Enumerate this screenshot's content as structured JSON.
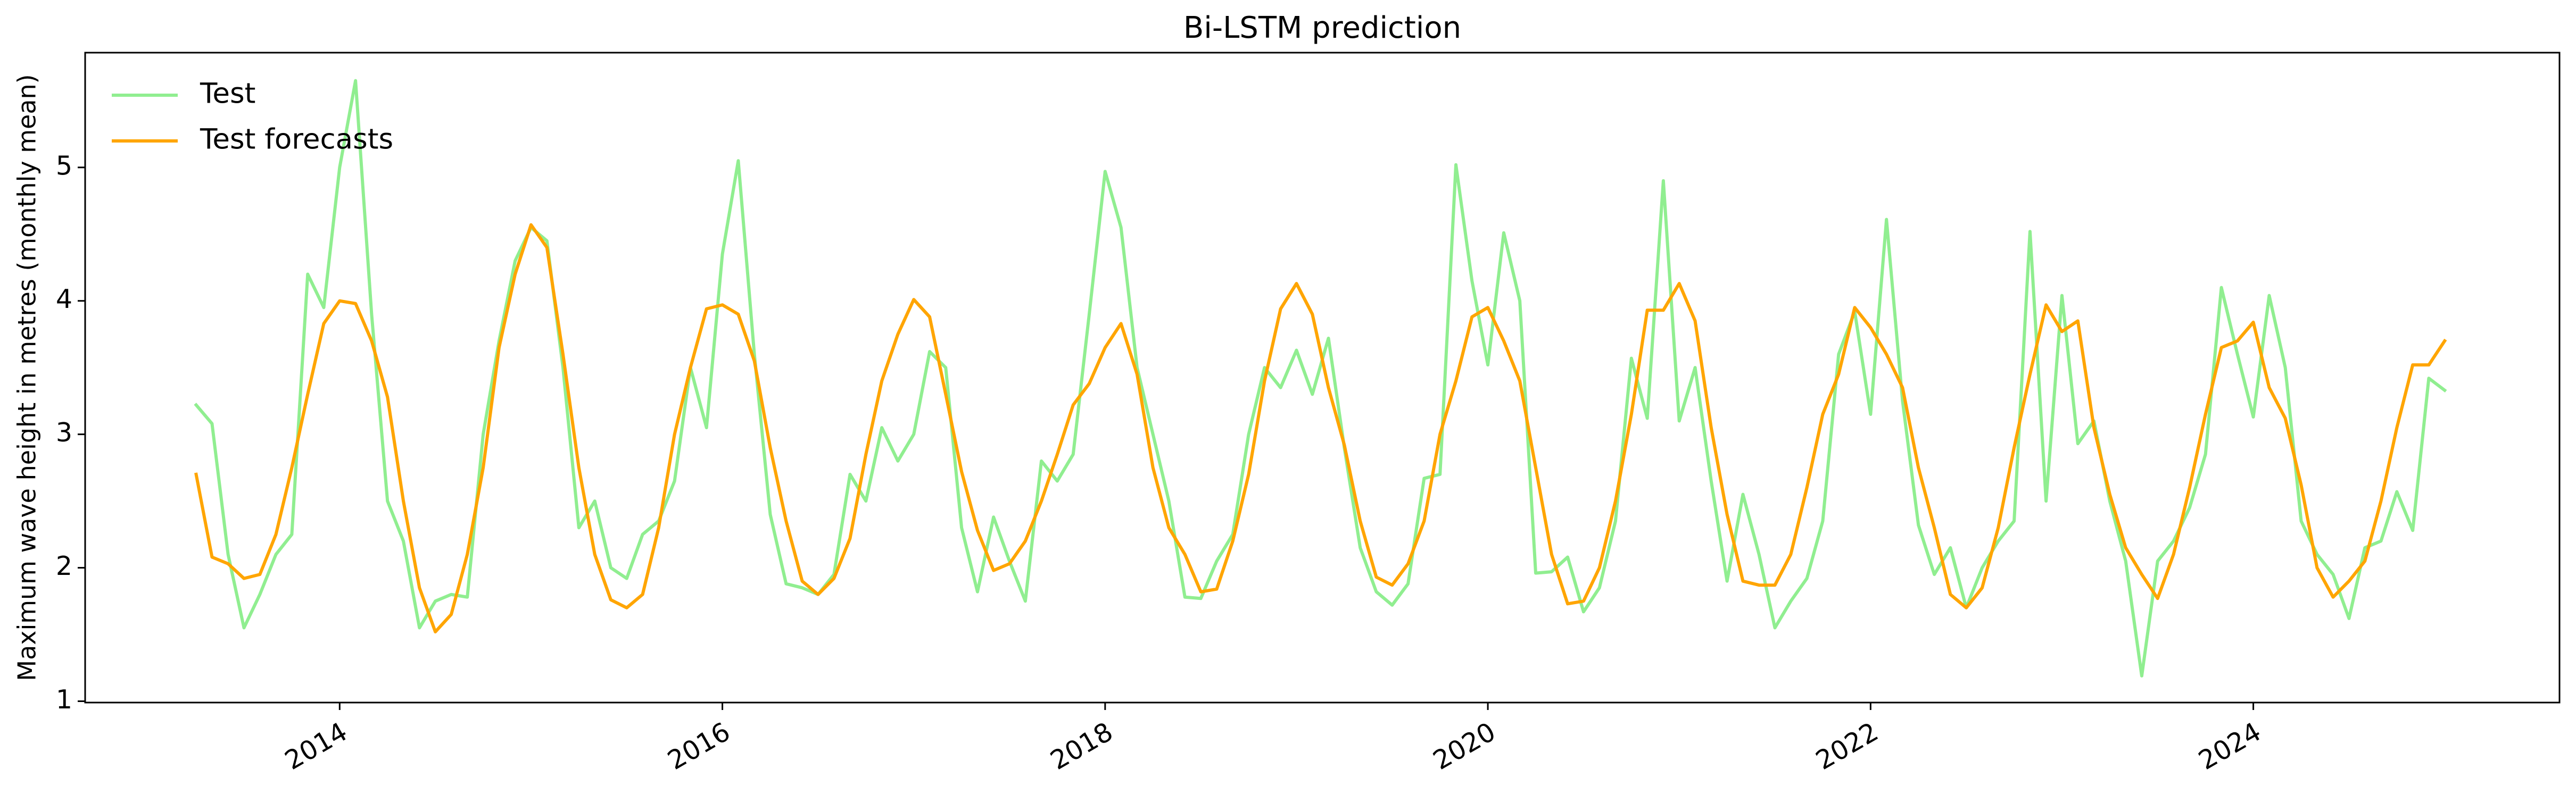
{
  "chart_data": {
    "type": "line",
    "title": "Bi-LSTM prediction",
    "ylabel": "Maximum wave height in metres (monthly mean)",
    "x": [
      2013.25,
      2013.333,
      2013.417,
      2013.5,
      2013.583,
      2013.667,
      2013.75,
      2013.833,
      2013.917,
      2014,
      2014.083,
      2014.167,
      2014.25,
      2014.333,
      2014.417,
      2014.5,
      2014.583,
      2014.667,
      2014.75,
      2014.833,
      2014.917,
      2015,
      2015.083,
      2015.167,
      2015.25,
      2015.333,
      2015.417,
      2015.5,
      2015.583,
      2015.667,
      2015.75,
      2015.833,
      2015.917,
      2016,
      2016.083,
      2016.167,
      2016.25,
      2016.333,
      2016.417,
      2016.5,
      2016.583,
      2016.667,
      2016.75,
      2016.833,
      2016.917,
      2017,
      2017.083,
      2017.167,
      2017.25,
      2017.333,
      2017.417,
      2017.5,
      2017.583,
      2017.667,
      2017.75,
      2017.833,
      2017.917,
      2018,
      2018.083,
      2018.167,
      2018.25,
      2018.333,
      2018.417,
      2018.5,
      2018.583,
      2018.667,
      2018.75,
      2018.833,
      2018.917,
      2019,
      2019.083,
      2019.167,
      2019.25,
      2019.333,
      2019.417,
      2019.5,
      2019.583,
      2019.667,
      2019.75,
      2019.833,
      2019.917,
      2020,
      2020.083,
      2020.167,
      2020.25,
      2020.333,
      2020.417,
      2020.5,
      2020.583,
      2020.667,
      2020.75,
      2020.833,
      2020.917,
      2021,
      2021.083,
      2021.167,
      2021.25,
      2021.333,
      2021.417,
      2021.5,
      2021.583,
      2021.667,
      2021.75,
      2021.833,
      2021.917,
      2022,
      2022.083,
      2022.167,
      2022.25,
      2022.333,
      2022.417,
      2022.5,
      2022.583,
      2022.667,
      2022.75,
      2022.833,
      2022.917,
      2023,
      2023.083,
      2023.167,
      2023.25,
      2023.333,
      2023.417,
      2023.5,
      2023.583,
      2023.667,
      2023.75,
      2023.833,
      2023.917,
      2024,
      2024.083,
      2024.167,
      2024.25,
      2024.333,
      2024.417,
      2024.5,
      2024.583,
      2024.667,
      2024.75,
      2024.833,
      2024.917,
      2025
    ],
    "series": [
      {
        "name": "Test",
        "color": "#90ee90",
        "values": [
          3.22,
          3.08,
          2.1,
          1.55,
          1.8,
          2.1,
          2.25,
          4.2,
          3.95,
          5.0,
          5.65,
          3.9,
          2.5,
          2.2,
          1.55,
          1.75,
          1.8,
          1.78,
          3.0,
          3.7,
          4.3,
          4.55,
          4.45,
          3.5,
          2.3,
          2.5,
          2.0,
          1.92,
          2.25,
          2.35,
          2.65,
          3.5,
          3.05,
          4.35,
          5.05,
          3.6,
          2.4,
          1.88,
          1.85,
          1.8,
          1.95,
          2.7,
          2.5,
          3.05,
          2.8,
          3.0,
          3.62,
          3.5,
          2.3,
          1.82,
          2.38,
          2.05,
          1.75,
          2.8,
          2.65,
          2.85,
          3.9,
          4.97,
          4.55,
          3.5,
          3.0,
          2.5,
          1.78,
          1.77,
          2.05,
          2.25,
          3.0,
          3.5,
          3.35,
          3.63,
          3.3,
          3.72,
          2.9,
          2.15,
          1.82,
          1.72,
          1.88,
          2.67,
          2.7,
          5.02,
          4.15,
          3.52,
          4.51,
          4.0,
          1.96,
          1.97,
          2.08,
          1.67,
          1.85,
          2.35,
          3.57,
          3.12,
          4.9,
          3.1,
          3.5,
          2.65,
          1.9,
          2.55,
          2.1,
          1.55,
          1.75,
          1.92,
          2.35,
          3.6,
          3.92,
          3.15,
          4.61,
          3.25,
          2.32,
          1.95,
          2.15,
          1.7,
          2.0,
          2.2,
          2.35,
          4.52,
          2.5,
          4.04,
          2.93,
          3.1,
          2.5,
          2.05,
          1.19,
          2.05,
          2.2,
          2.45,
          2.85,
          4.1,
          3.6,
          3.13,
          4.04,
          3.5,
          2.35,
          2.1,
          1.95,
          1.62,
          2.15,
          2.2,
          2.57,
          2.28,
          3.42,
          3.33
        ]
      },
      {
        "name": "Test forecasts",
        "color": "#ffa500",
        "values": [
          2.7,
          2.08,
          2.03,
          1.92,
          1.95,
          2.25,
          2.75,
          3.3,
          3.83,
          4.0,
          3.98,
          3.7,
          3.28,
          2.5,
          1.85,
          1.52,
          1.65,
          2.1,
          2.75,
          3.65,
          4.2,
          4.57,
          4.4,
          3.6,
          2.75,
          2.1,
          1.76,
          1.7,
          1.8,
          2.3,
          3.0,
          3.5,
          3.94,
          3.97,
          3.9,
          3.55,
          2.9,
          2.35,
          1.9,
          1.8,
          1.92,
          2.22,
          2.85,
          3.4,
          3.75,
          4.01,
          3.88,
          3.3,
          2.72,
          2.28,
          1.98,
          2.03,
          2.2,
          2.5,
          2.85,
          3.22,
          3.38,
          3.65,
          3.83,
          3.45,
          2.75,
          2.3,
          2.1,
          1.82,
          1.84,
          2.2,
          2.7,
          3.4,
          3.94,
          4.13,
          3.9,
          3.35,
          2.92,
          2.35,
          1.93,
          1.87,
          2.03,
          2.35,
          3.0,
          3.4,
          3.88,
          3.95,
          3.7,
          3.4,
          2.75,
          2.1,
          1.73,
          1.75,
          2.0,
          2.5,
          3.15,
          3.93,
          3.93,
          4.13,
          3.85,
          3.05,
          2.4,
          1.9,
          1.87,
          1.87,
          2.1,
          2.6,
          3.15,
          3.45,
          3.95,
          3.8,
          3.6,
          3.35,
          2.75,
          2.3,
          1.8,
          1.7,
          1.85,
          2.3,
          2.9,
          3.45,
          3.97,
          3.77,
          3.85,
          3.05,
          2.55,
          2.15,
          1.95,
          1.77,
          2.1,
          2.6,
          3.15,
          3.65,
          3.7,
          3.84,
          3.35,
          3.12,
          2.62,
          2.0,
          1.78,
          1.9,
          2.05,
          2.5,
          3.05,
          3.52,
          3.52,
          3.7
        ]
      }
    ],
    "xlim": [
      2012.67,
      2025.6
    ],
    "xticks": [
      2014,
      2016,
      2018,
      2020,
      2022,
      2024
    ],
    "ylim": [
      0.99,
      5.86
    ],
    "yticks": [
      1,
      2,
      3,
      4,
      5
    ],
    "grid": false,
    "legend": "upper left"
  }
}
